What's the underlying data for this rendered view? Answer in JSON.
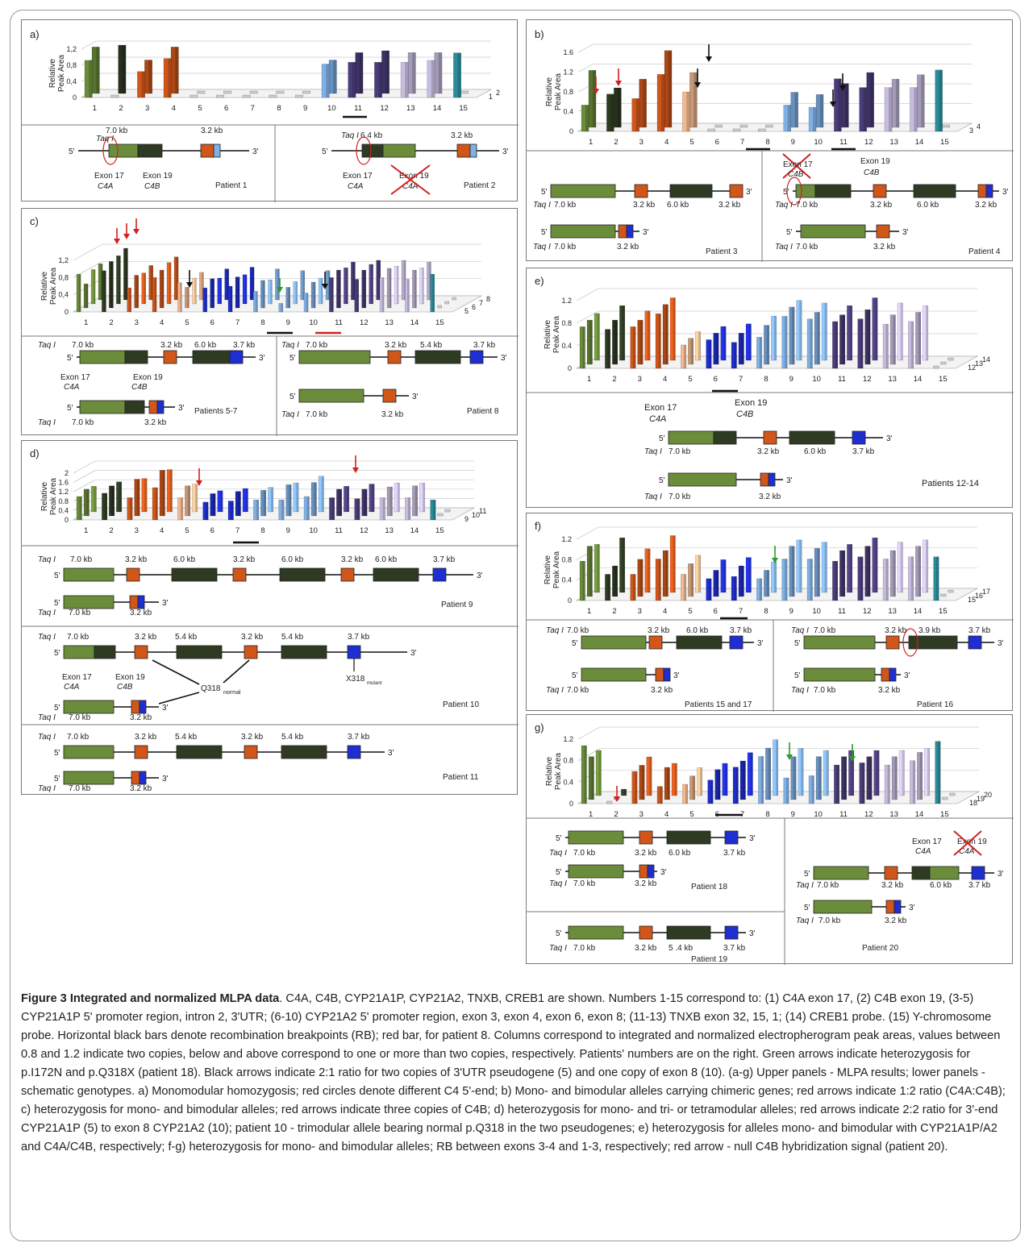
{
  "figure": {
    "panels": [
      {
        "id": "a",
        "label": "a)",
        "ylabel_line1": "Relative",
        "ylabel_line2": "Peak Area",
        "yticks": [
          "1,2",
          "0,8",
          "0,4",
          "0"
        ],
        "xticks": [
          "1",
          "2",
          "3",
          "4",
          "5",
          "6",
          "7",
          "8",
          "9",
          "10",
          "11",
          "12",
          "13",
          "14",
          "15"
        ],
        "rows": [
          "1",
          "2"
        ],
        "genotypes": [
          {
            "name": "Patient 1",
            "taq": "Taq I",
            "sizes": [
              "7.0 kb",
              "3.2 kb"
            ],
            "exon17": "Exon 17",
            "c4a": "C4A",
            "exon19": "Exon 19",
            "c4b": "C4B",
            "five": "5'",
            "three": "3'"
          },
          {
            "name": "Patient 2",
            "taq": "Taq I",
            "sizes": [
              "6.4 kb",
              "3.2 kb"
            ],
            "exon17": "Exon 17",
            "c4a": "C4A",
            "exon19": "Exon 19",
            "c4a2": "C4A",
            "five": "5'",
            "three": "3'"
          }
        ]
      },
      {
        "id": "b",
        "label": "b)",
        "ylabel_line1": "Relative",
        "ylabel_line2": "Peak Area",
        "yticks": [
          "1.6",
          "1.2",
          "0.8",
          "0.4",
          "0"
        ],
        "xticks": [
          "1",
          "2",
          "3",
          "4",
          "5",
          "6",
          "7",
          "8",
          "9",
          "10",
          "11",
          "12",
          "13",
          "14",
          "15"
        ],
        "rows": [
          "3",
          "4"
        ],
        "genotypes": [
          {
            "name": "Patient 3",
            "taq": "Taq I",
            "sizes": [
              "7.0 kb",
              "3.2 kb",
              "6.0 kb",
              "3.2 kb",
              "7.0 kb",
              "3.2 kb"
            ]
          },
          {
            "name": "Patient 4",
            "taq": "Taq I",
            "sizes": [
              "7.0 kb",
              "3.2 kb",
              "6.0 kb",
              "3.2 kb",
              "7.0 kb",
              "3.2 kb"
            ],
            "exon17": "Exon 17",
            "c4b1": "C4B",
            "exon19": "Exon 19",
            "c4b2": "C4B"
          }
        ]
      },
      {
        "id": "c",
        "label": "c)",
        "ylabel_line1": "Relative",
        "ylabel_line2": "Peak Area",
        "yticks": [
          "1,2",
          "0,8",
          "0,4",
          "0"
        ],
        "xticks": [
          "1",
          "2",
          "3",
          "4",
          "5",
          "6",
          "7",
          "8",
          "9",
          "10",
          "11",
          "12",
          "13",
          "14",
          "15"
        ],
        "rows": [
          "5",
          "6",
          "7",
          "8"
        ],
        "genotypes": [
          {
            "name": "Patients 5-7",
            "taq": "Taq I",
            "sizes": [
              "7.0 kb",
              "3.2 kb",
              "6.0 kb",
              "3.7 kb",
              "7.0 kb",
              "3.2 kb"
            ],
            "exon17": "Exon 17",
            "c4a": "C4A",
            "exon19": "Exon 19",
            "c4b": "C4B"
          },
          {
            "name": "Patient 8",
            "taq": "Taq I",
            "sizes": [
              "7.0 kb",
              "3.2 kb",
              "5.4 kb",
              "3.7 kb",
              "7.0 kb",
              "3.2 kb"
            ]
          }
        ]
      },
      {
        "id": "d",
        "label": "d)",
        "ylabel_line1": "Relative",
        "ylabel_line2": "Peak Area",
        "yticks": [
          "2",
          "1.6",
          "1.2",
          "0.8",
          "0.4",
          "0"
        ],
        "xticks": [
          "1",
          "2",
          "3",
          "4",
          "5",
          "6",
          "7",
          "8",
          "9",
          "10",
          "11",
          "12",
          "13",
          "14",
          "15"
        ],
        "rows": [
          "9",
          "10",
          "11"
        ],
        "genotypes": [
          {
            "name": "Patient 9",
            "taq": "Taq I",
            "sizes": [
              "7.0 kb",
              "3.2 kb",
              "6.0 kb",
              "3.2 kb",
              "6.0 kb",
              "3.2 kb",
              "6.0 kb",
              "3.7 kb",
              "7.0 kb",
              "3.2 kb"
            ]
          },
          {
            "name": "Patient 10",
            "taq": "Taq I",
            "sizes": [
              "7.0 kb",
              "3.2 kb",
              "5.4 kb",
              "3.2 kb",
              "5.4 kb",
              "3.7 kb",
              "7.0 kb",
              "3.2 kb"
            ],
            "exon17": "Exon 17",
            "c4a": "C4A",
            "exon19": "Exon 19",
            "c4b": "C4B",
            "qnormal": "Q318",
            "qnormal_sub": "normal",
            "xmut": "X318",
            "xmut_sub": "mutant"
          },
          {
            "name": "Patient 11",
            "taq": "Taq I",
            "sizes": [
              "7.0 kb",
              "3.2 kb",
              "5.4 kb",
              "3.2 kb",
              "5.4 kb",
              "3.7 kb",
              "7.0 kb",
              "3.2 kb"
            ]
          }
        ]
      },
      {
        "id": "e",
        "label": "e)",
        "ylabel_line1": "Relative",
        "ylabel_line2": "Peak Area",
        "yticks": [
          "1.2",
          "0.8",
          "0.4",
          "0"
        ],
        "xticks": [
          "1",
          "2",
          "3",
          "4",
          "5",
          "6",
          "7",
          "8",
          "9",
          "10",
          "11",
          "12",
          "13",
          "14",
          "15"
        ],
        "rows": [
          "12",
          "13",
          "14"
        ],
        "genotypes": [
          {
            "name": "Patients 12-14",
            "taq": "Taq I",
            "sizes": [
              "7.0 kb",
              "3.2 kb",
              "6.0 kb",
              "3.7 kb",
              "7.0 kb",
              "3.2 kb"
            ],
            "exon17": "Exon 17",
            "c4a": "C4A",
            "exon19": "Exon 19",
            "c4b": "C4B"
          }
        ]
      },
      {
        "id": "f",
        "label": "f)",
        "ylabel_line1": "Relative",
        "ylabel_line2": "Peak Area",
        "yticks": [
          "1.2",
          "0.8",
          "0.4",
          "0"
        ],
        "xticks": [
          "1",
          "2",
          "3",
          "4",
          "5",
          "6",
          "7",
          "8",
          "9",
          "10",
          "11",
          "12",
          "13",
          "14",
          "15"
        ],
        "rows": [
          "15",
          "16",
          "17"
        ],
        "genotypes": [
          {
            "name": "Patients 15 and 17",
            "taq": "Taq I",
            "sizes": [
              "7.0 kb",
              "3.2 kb",
              "6.0 kb",
              "3.7 kb",
              "7.0 kb",
              "3.2 kb"
            ]
          },
          {
            "name": "Patient 16",
            "taq": "Taq I",
            "sizes": [
              "7.0 kb",
              "3.2 kb",
              "3.9 kb",
              "3.7 kb",
              "7.0 kb",
              "3.2 kb"
            ]
          }
        ]
      },
      {
        "id": "g",
        "label": "g)",
        "ylabel_line1": "Relative",
        "ylabel_line2": "Peak Area",
        "yticks": [
          "1.2",
          "0.8",
          "0.4",
          "0"
        ],
        "xticks": [
          "1",
          "2",
          "3",
          "4",
          "5",
          "6",
          "7",
          "8",
          "9",
          "10",
          "11",
          "12",
          "13",
          "14",
          "15"
        ],
        "rows": [
          "18",
          "19",
          "20"
        ],
        "genotypes": [
          {
            "name": "Patient 18",
            "taq": "Taq I",
            "sizes": [
              "7.0 kb",
              "3.2 kb",
              "6.0 kb",
              "3.7 kb",
              "7.0 kb",
              "3.2 kb"
            ]
          },
          {
            "name": "Patient 19",
            "taq": "Taq I",
            "sizes": [
              "7.0 kb",
              "3.2 kb",
              "5 .4 kb",
              "3.7 kb",
              "7.0 kb",
              "3.2 kb"
            ]
          },
          {
            "name": "Patient 20",
            "taq": "Taq I",
            "sizes": [
              "7.0 kb",
              "3.2 kb",
              "6.0 kb",
              "3.7 kb",
              "7.0 kb",
              "3.2 kb"
            ],
            "exon17": "Exon 17",
            "c4a": "C4A",
            "exon19": "Exon 19",
            "c4a2": "C4A"
          }
        ]
      }
    ],
    "colors": {
      "c4a": "#6b8c3a",
      "c4b": "#2e3b22",
      "cyp1p": "#d0561a",
      "cyp1p_light": "#f2b98f",
      "cyp2": "#1f2ed0",
      "cyp2_light": "#7fb0e6",
      "tnxb": "#4a3d7a",
      "tnxb_light": "#c7bde0",
      "creb": "#2a8c9a",
      "red_arrow": "#d12020",
      "green_arrow": "#2a9a2a",
      "black_arrow": "#111111"
    }
  },
  "caption": {
    "title": "Figure 3 Integrated and normalized MLPA data",
    "text": ". C4A, C4B, CYP21A1P, CYP21A2, TNXB, CREB1 are shown. Numbers 1-15 correspond to: (1) C4A exon 17, (2) C4B exon 19, (3-5) CYP21A1P 5' promoter region, intron 2, 3'UTR; (6-10) CYP21A2 5' promoter region, exon 3, exon 4, exon 6, exon 8; (11-13) TNXB exon 32, 15, 1; (14) CREB1 probe. (15) Y-chromosome probe. Horizontal black bars denote recombination breakpoints (RB); red bar, for patient 8. Columns correspond to integrated and normalized electropherogram peak areas, values between 0.8 and 1.2 indicate two copies, below and above correspond to one or more than two copies, respectively. Patients' numbers are on the right. Green arrows indicate heterozygosis for p.I172N and p.Q318X (patient 18). Black arrows indicate 2:1 ratio for two copies of 3'UTR pseudogene (5) and one copy of exon 8 (10). (a-g) Upper panels - MLPA results; lower panels - schematic genotypes. a) Monomodular homozygosis; red circles denote different C4 5'-end; b) Mono- and bimodular alleles carrying chimeric genes; red arrows indicate 1:2 ratio (C4A:C4B); c) heterozygosis for mono- and bimodular alleles; red arrows indicate three copies of C4B; d) heterozygosis for mono- and tri- or tetramodular alleles; red arrows indicate 2:2 ratio for 3'-end CYP21A1P (5) to exon 8 CYP21A2 (10); patient 10 - trimodular allele bearing normal p.Q318 in the two pseudogenes; e) heterozygosis for alleles mono- and bimodular with CYP21A1P/A2 and C4A/C4B, respectively; f-g) heterozygosis for mono- and bimodular alleles; RB between exons 3-4 and 1-3, respectively; red arrow - null C4B hybridization signal (patient 20)."
  }
}
